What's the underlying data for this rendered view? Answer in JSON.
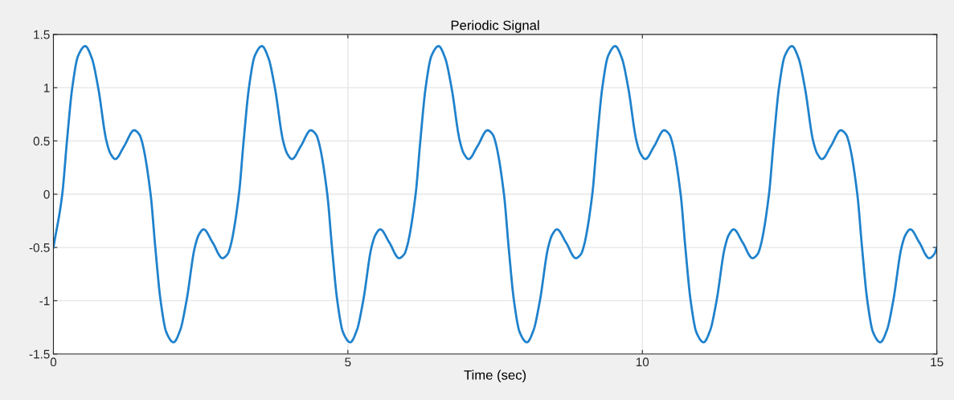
{
  "chart_data": {
    "type": "line",
    "title": "Periodic Signal",
    "xlabel": "Time (sec)",
    "xlim": [
      0,
      15
    ],
    "xticks": [
      0,
      5,
      10,
      15
    ],
    "ylim": [
      -1.5,
      1.5
    ],
    "yticks": [
      -1.5,
      -1,
      -0.5,
      0,
      0.5,
      1,
      1.5
    ],
    "grid": true,
    "series": [
      {
        "color": "#1f82cc",
        "x": [
          0,
          0.15,
          0.23,
          0.32,
          0.42,
          0.54,
          0.65,
          0.76,
          0.9,
          0.97,
          1.05,
          1.2,
          1.37,
          1.46,
          1.5,
          1.65,
          1.73,
          1.82,
          1.92,
          2.04,
          2.15,
          2.26,
          2.4,
          2.47,
          2.55,
          2.7,
          2.87,
          2.96,
          3,
          3.15,
          3.23,
          3.32,
          3.42,
          3.54,
          3.65,
          3.76,
          3.9,
          3.97,
          4.05,
          4.2,
          4.37,
          4.46,
          4.5,
          4.65,
          4.73,
          4.82,
          4.92,
          5.04,
          5.15,
          5.26,
          5.4,
          5.47,
          5.55,
          5.7,
          5.87,
          5.96,
          6,
          6.15,
          6.23,
          6.32,
          6.42,
          6.54,
          6.65,
          6.76,
          6.9,
          6.97,
          7.05,
          7.2,
          7.37,
          7.46,
          7.5,
          7.65,
          7.73,
          7.82,
          7.92,
          8.04,
          8.15,
          8.26,
          8.4,
          8.47,
          8.55,
          8.7,
          8.87,
          8.96,
          9,
          9.15,
          9.23,
          9.32,
          9.42,
          9.54,
          9.65,
          9.76,
          9.9,
          9.97,
          10.05,
          10.2,
          10.37,
          10.46,
          10.5,
          10.65,
          10.73,
          10.82,
          10.92,
          11.04,
          11.15,
          11.26,
          11.4,
          11.47,
          11.55,
          11.7,
          11.87,
          11.96,
          12,
          12.15,
          12.23,
          12.32,
          12.42,
          12.54,
          12.65,
          12.76,
          12.9,
          12.97,
          13.05,
          13.2,
          13.37,
          13.46,
          13.5,
          13.65,
          13.73,
          13.82,
          13.92,
          14.04,
          14.15,
          14.26,
          14.4,
          14.47,
          14.55,
          14.7,
          14.87,
          14.96,
          15
        ],
        "values": [
          -0.5,
          0,
          0.5,
          1,
          1.3,
          1.39,
          1.28,
          1,
          0.5,
          0.38,
          0.33,
          0.45,
          0.6,
          0.56,
          0.5,
          0,
          -0.5,
          -1,
          -1.3,
          -1.39,
          -1.28,
          -1,
          -0.5,
          -0.38,
          -0.33,
          -0.45,
          -0.6,
          -0.56,
          -0.5,
          0,
          0.5,
          1,
          1.3,
          1.39,
          1.28,
          1,
          0.5,
          0.38,
          0.33,
          0.45,
          0.6,
          0.56,
          0.5,
          0,
          -0.5,
          -1,
          -1.3,
          -1.39,
          -1.28,
          -1,
          -0.5,
          -0.38,
          -0.33,
          -0.45,
          -0.6,
          -0.56,
          -0.5,
          0,
          0.5,
          1,
          1.3,
          1.39,
          1.28,
          1,
          0.5,
          0.38,
          0.33,
          0.45,
          0.6,
          0.56,
          0.5,
          0,
          -0.5,
          -1,
          -1.3,
          -1.39,
          -1.28,
          -1,
          -0.5,
          -0.38,
          -0.33,
          -0.45,
          -0.6,
          -0.56,
          -0.5,
          0,
          0.5,
          1,
          1.3,
          1.39,
          1.28,
          1,
          0.5,
          0.38,
          0.33,
          0.45,
          0.6,
          0.56,
          0.5,
          0,
          -0.5,
          -1,
          -1.3,
          -1.39,
          -1.28,
          -1,
          -0.5,
          -0.38,
          -0.33,
          -0.45,
          -0.6,
          -0.56,
          -0.5,
          0,
          0.5,
          1,
          1.3,
          1.39,
          1.28,
          1,
          0.5,
          0.38,
          0.33,
          0.45,
          0.6,
          0.56,
          0.5,
          0,
          -0.5,
          -1,
          -1.3,
          -1.39,
          -1.28,
          -1,
          -0.5,
          -0.38,
          -0.33,
          -0.45,
          -0.6,
          -0.56,
          -0.5
        ]
      }
    ]
  }
}
